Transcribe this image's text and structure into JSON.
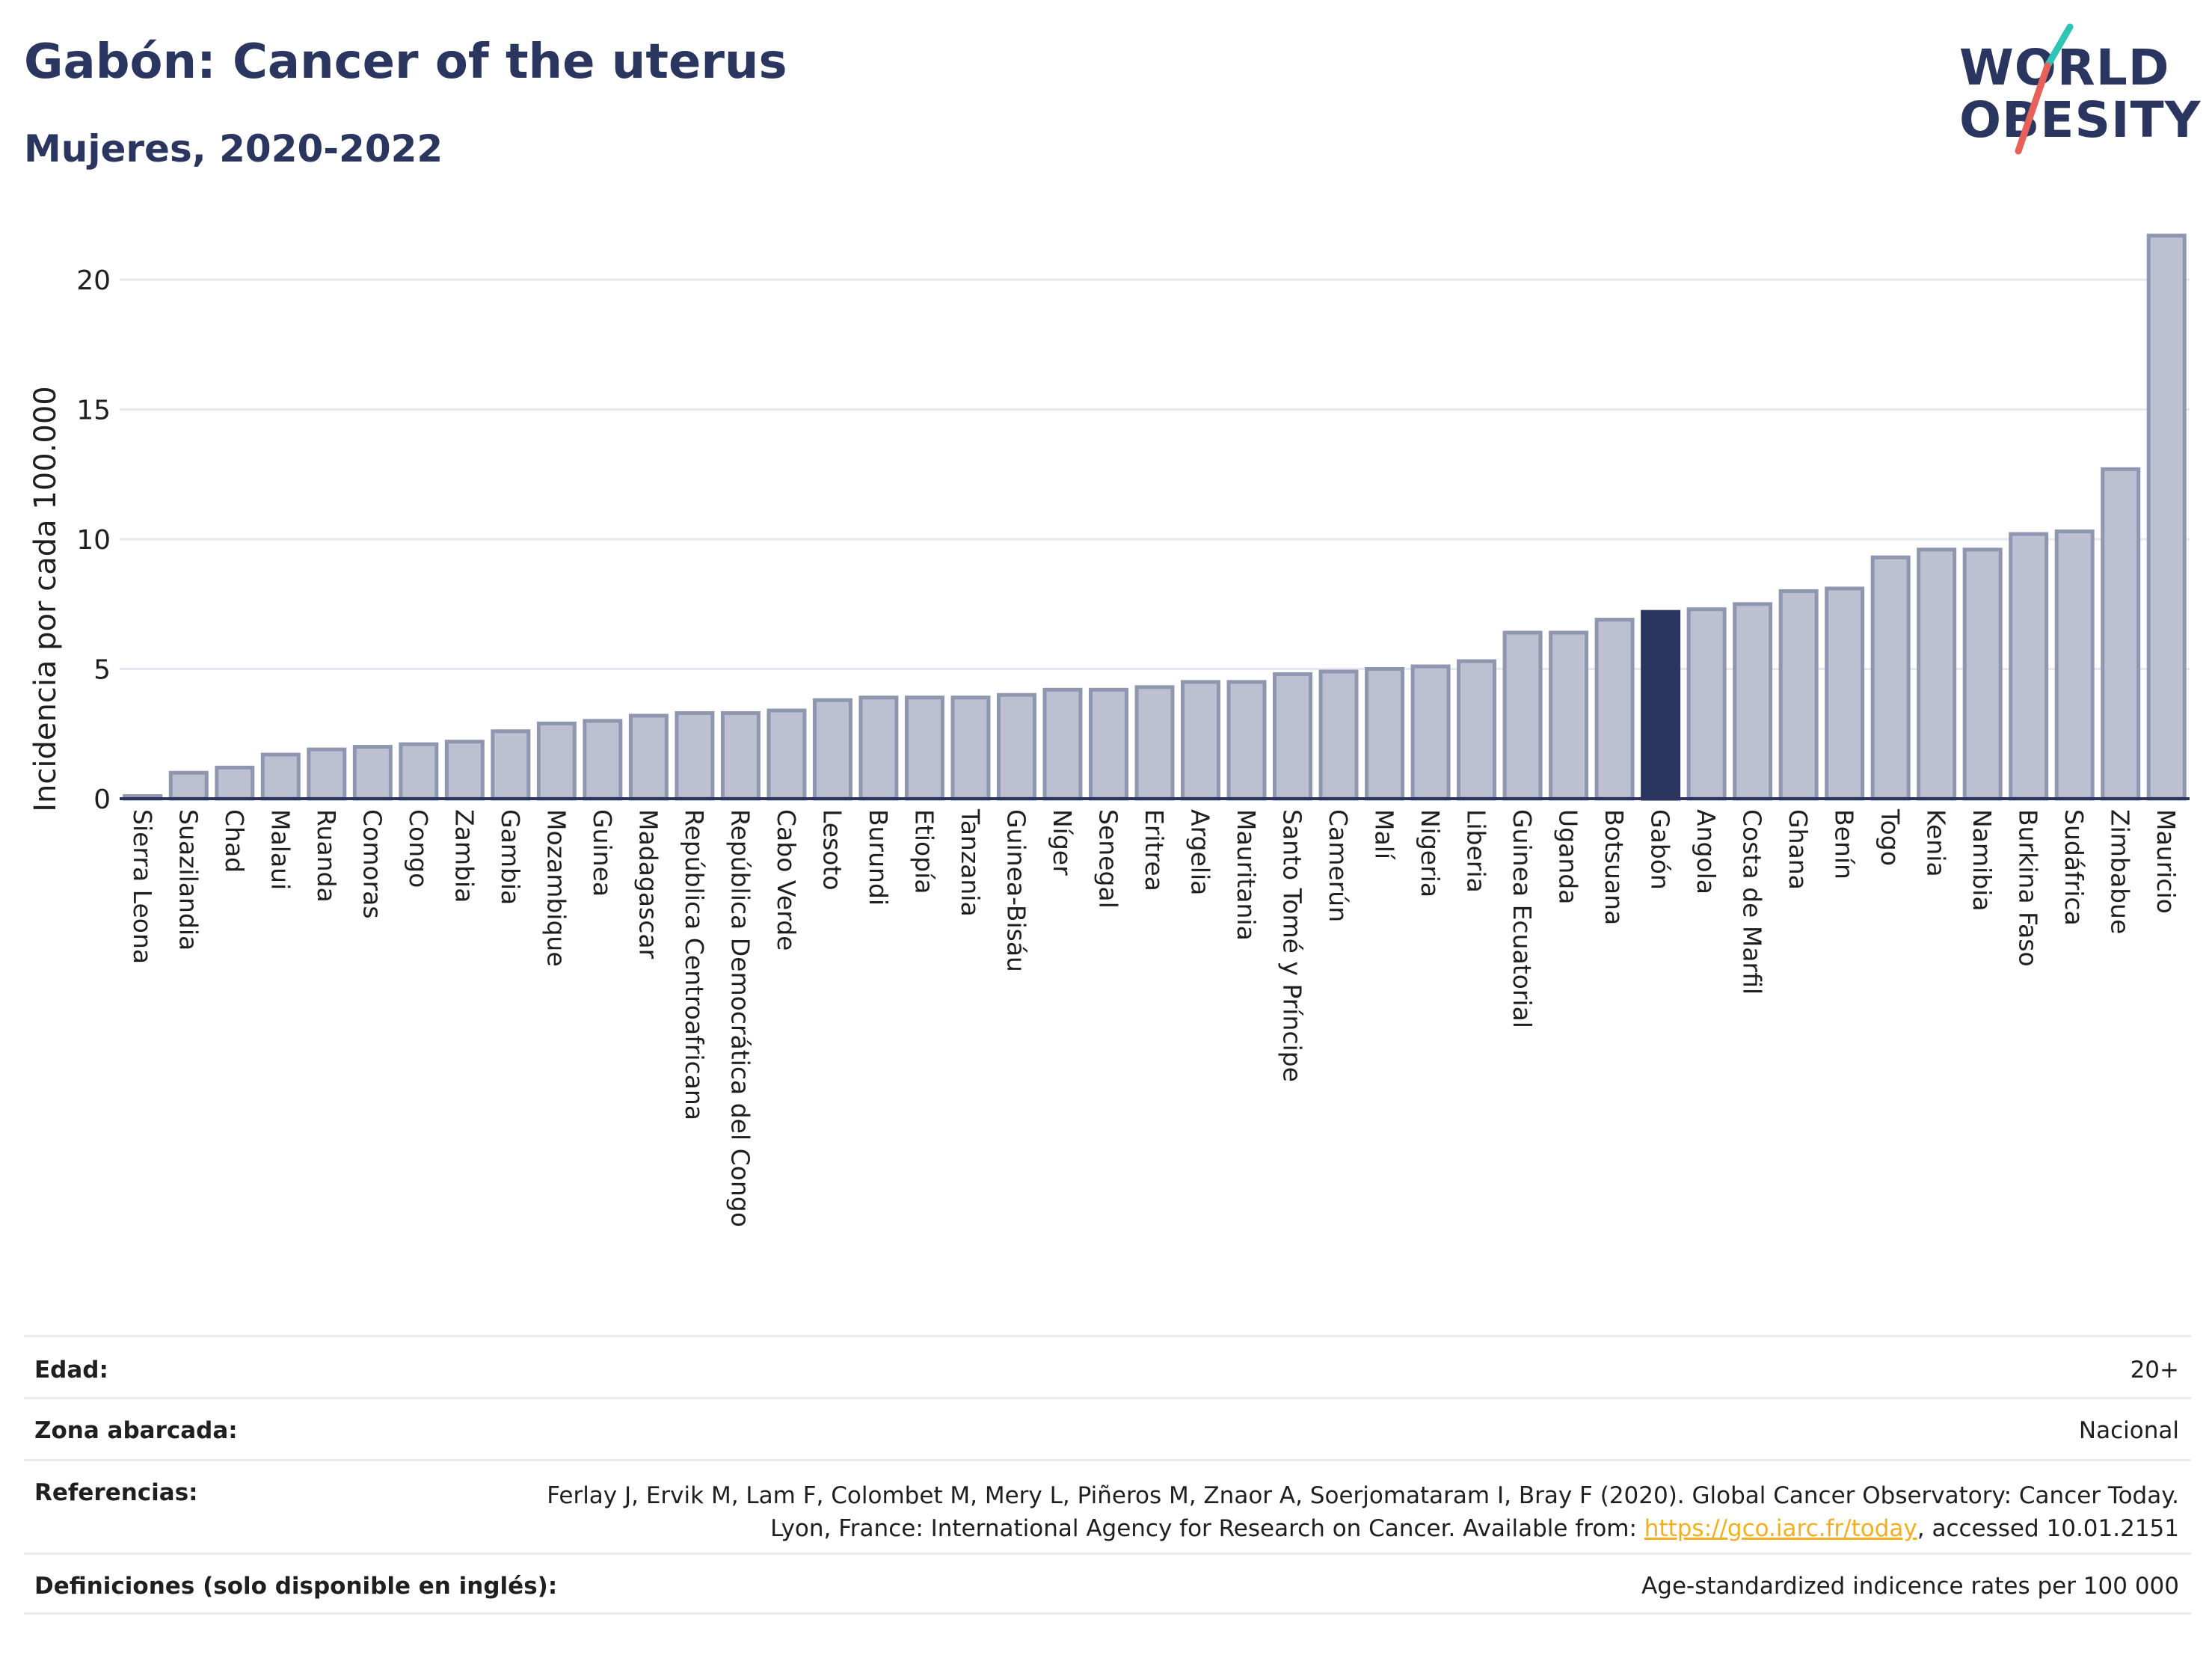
{
  "header": {
    "title": "Gabón: Cancer of the uterus",
    "subtitle": "Mujeres, 2020-2022"
  },
  "logo": {
    "line1": "WORLD",
    "line2": "OBESITY",
    "slash_colors": [
      "#2ec4b6",
      "#e8605a"
    ]
  },
  "chart_data": {
    "type": "bar",
    "ylabel": "Incidencia por cada 100.000",
    "xlabel": "",
    "ylim": [
      0,
      22
    ],
    "yticks": [
      0,
      5,
      10,
      15,
      20
    ],
    "grid": true,
    "highlight": "Gabón",
    "colors": {
      "bar_fill": "#bcc0d0",
      "bar_stroke": "#8f96b0",
      "highlight_fill": "#2b3660",
      "gridline": "#e6e8ef",
      "axis": "#2b3660"
    },
    "categories": [
      "Sierra Leona",
      "Suazilandia",
      "Chad",
      "Malaui",
      "Ruanda",
      "Comoras",
      "Congo",
      "Zambia",
      "Gambia",
      "Mozambique",
      "Guinea",
      "Madagascar",
      "República Centroafricana",
      "República Democrática del Congo",
      "Cabo Verde",
      "Lesoto",
      "Burundi",
      "Etiopía",
      "Tanzania",
      "Guinea-Bisáu",
      "Níger",
      "Senegal",
      "Eritrea",
      "Argelia",
      "Mauritania",
      "Santo Tomé y Príncipe",
      "Camerún",
      "Malí",
      "Nigeria",
      "Liberia",
      "Guinea Ecuatorial",
      "Uganda",
      "Botsuana",
      "Gabón",
      "Angola",
      "Costa de Marfil",
      "Ghana",
      "Benín",
      "Togo",
      "Kenia",
      "Namibia",
      "Burkina Faso",
      "Sudáfrica",
      "Zimbabue",
      "Mauricio"
    ],
    "values": [
      0.1,
      1.0,
      1.2,
      1.7,
      1.9,
      2.0,
      2.1,
      2.2,
      2.6,
      2.9,
      3.0,
      3.2,
      3.3,
      3.3,
      3.4,
      3.8,
      3.9,
      3.9,
      3.9,
      4.0,
      4.2,
      4.2,
      4.3,
      4.5,
      4.5,
      4.8,
      4.9,
      5.0,
      5.1,
      5.3,
      6.4,
      6.4,
      6.9,
      7.2,
      7.3,
      7.5,
      8.0,
      8.1,
      9.3,
      9.6,
      9.6,
      10.2,
      10.3,
      12.7,
      21.7
    ]
  },
  "info": {
    "age_label": "Edad:",
    "age_value": "20+",
    "area_label": "Zona abarcada:",
    "area_value": "Nacional",
    "refs_label": "Referencias:",
    "refs_text_1": "Ferlay J, Ervik M, Lam F, Colombet M, Mery L, Piñeros M, Znaor A, Soerjomataram I, Bray F (2020). Global Cancer Observatory: Cancer Today. Lyon, France: International Agency for Research on Cancer. Available from: ",
    "refs_link": "https://gco.iarc.fr/today",
    "refs_text_2": ", accessed 10.01.2151",
    "defs_label": "Definiciones (solo disponible en inglés):",
    "defs_value": "Age-standardized indicence rates per 100 000"
  }
}
